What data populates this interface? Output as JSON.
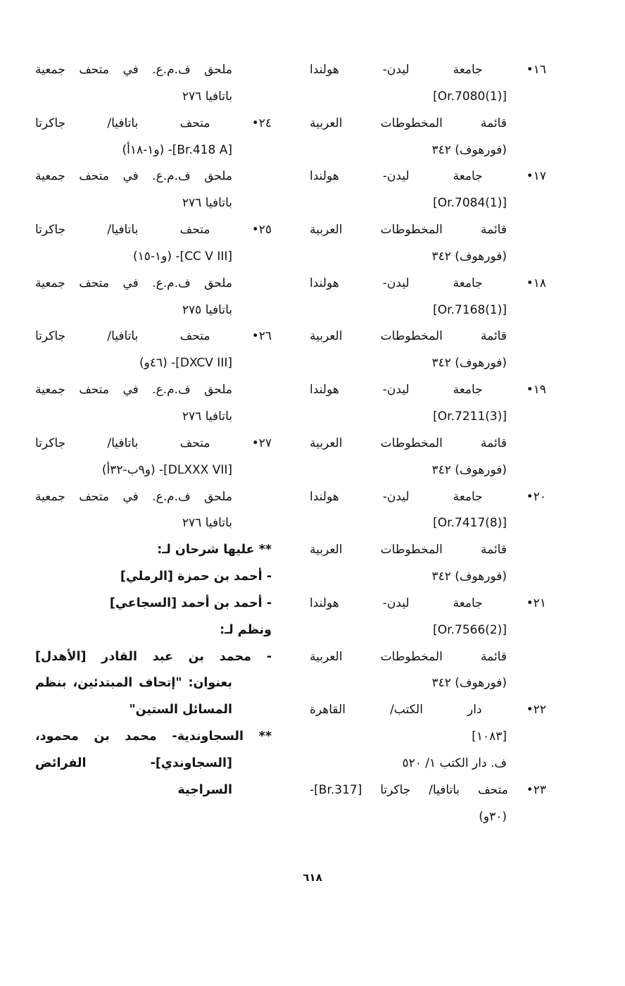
{
  "columns": {
    "right": [
      {
        "text": "١٦• جامعة ليدن- هولندا",
        "indent": false,
        "full": true,
        "bold": false
      },
      {
        "text": "[Or.7080(1)]",
        "indent": true,
        "full": false,
        "bold": false
      },
      {
        "text": "قائمة المخطوطات العربية",
        "indent": true,
        "full": true,
        "bold": false
      },
      {
        "text": "(فورهوف) ٣٤٢",
        "indent": true,
        "full": false,
        "bold": false
      },
      {
        "text": "١٧• جامعة ليدن- هولندا",
        "indent": false,
        "full": true,
        "bold": false
      },
      {
        "text": "[Or.7084(1)]",
        "indent": true,
        "full": false,
        "bold": false
      },
      {
        "text": "قائمة المخطوطات العربية",
        "indent": true,
        "full": true,
        "bold": false
      },
      {
        "text": "(فورهوف) ٣٤٢",
        "indent": true,
        "full": false,
        "bold": false
      },
      {
        "text": "١٨• جامعة ليدن- هولندا",
        "indent": false,
        "full": true,
        "bold": false
      },
      {
        "text": "[Or.7168(1)]",
        "indent": true,
        "full": false,
        "bold": false
      },
      {
        "text": "قائمة المخطوطات العربية",
        "indent": true,
        "full": true,
        "bold": false
      },
      {
        "text": "(فورهوف) ٣٤٢",
        "indent": true,
        "full": false,
        "bold": false
      },
      {
        "text": "١٩• جامعة ليدن- هولندا",
        "indent": false,
        "full": true,
        "bold": false
      },
      {
        "text": "[Or.7211(3)]",
        "indent": true,
        "full": false,
        "bold": false
      },
      {
        "text": "قائمة المخطوطات العربية",
        "indent": true,
        "full": true,
        "bold": false
      },
      {
        "text": "(فورهوف) ٣٤٢",
        "indent": true,
        "full": false,
        "bold": false
      },
      {
        "text": "٢٠• جامعة ليدن- هولندا",
        "indent": false,
        "full": true,
        "bold": false
      },
      {
        "text": "[Or.7417(8)]",
        "indent": true,
        "full": false,
        "bold": false
      },
      {
        "text": "قائمة المخطوطات العربية",
        "indent": true,
        "full": true,
        "bold": false
      },
      {
        "text": "(فورهوف) ٣٤٢",
        "indent": true,
        "full": false,
        "bold": false
      },
      {
        "text": "٢١• جامعة ليدن- هولندا",
        "indent": false,
        "full": true,
        "bold": false
      },
      {
        "text": "[Or.7566(2)]",
        "indent": true,
        "full": false,
        "bold": false
      },
      {
        "text": "قائمة المخطوطات العربية",
        "indent": true,
        "full": true,
        "bold": false
      },
      {
        "text": "(فورهوف) ٣٤٢",
        "indent": true,
        "full": false,
        "bold": false
      },
      {
        "text": "٢٢• دار الكتب/ القاهرة",
        "indent": false,
        "full": true,
        "bold": false
      },
      {
        "text": "[١٠٨٣]",
        "indent": true,
        "full": false,
        "bold": false
      },
      {
        "text": "ف. دار الكتب ١/ ٥٢٠",
        "indent": true,
        "full": false,
        "bold": false
      },
      {
        "text": "٢٣• متحف باتافيا/ جاكرتا [Br.317]-",
        "indent": false,
        "full": true,
        "bold": false
      },
      {
        "text": "(٣٠و)",
        "indent": true,
        "full": false,
        "bold": false
      }
    ],
    "left": [
      {
        "text": "ملحق ف.م.ع. في متحف جمعية",
        "indent": true,
        "full": true,
        "bold": false
      },
      {
        "text": "باتافيا ٢٧٦",
        "indent": true,
        "full": false,
        "bold": false
      },
      {
        "text": "٢٤• متحف باتافيا/ جاكرتا",
        "indent": false,
        "full": true,
        "bold": false
      },
      {
        "text": "[Br.418 A]- (و١-١٨أ)",
        "indent": true,
        "full": false,
        "bold": false
      },
      {
        "text": "ملحق ف.م.ع. في متحف جمعية",
        "indent": true,
        "full": true,
        "bold": false
      },
      {
        "text": "باتافيا ٢٧٦",
        "indent": true,
        "full": false,
        "bold": false
      },
      {
        "text": "٢٥• متحف باتافيا/ جاكرتا",
        "indent": false,
        "full": true,
        "bold": false
      },
      {
        "text": "[CC V III]- (و١-١٥)",
        "indent": true,
        "full": false,
        "bold": false
      },
      {
        "text": "ملحق ف.م.ع. في متحف جمعية",
        "indent": true,
        "full": true,
        "bold": false
      },
      {
        "text": "باتافيا ٢٧٥",
        "indent": true,
        "full": false,
        "bold": false
      },
      {
        "text": "٢٦• متحف باتافيا/ جاكرتا",
        "indent": false,
        "full": true,
        "bold": false
      },
      {
        "text": "[DXCV III]- (٤٦و)",
        "indent": true,
        "full": false,
        "bold": false
      },
      {
        "text": "ملحق ف.م.ع. في متحف جمعية",
        "indent": true,
        "full": true,
        "bold": false
      },
      {
        "text": "باتافيا ٢٧٦",
        "indent": true,
        "full": false,
        "bold": false
      },
      {
        "text": "٢٧• متحف باتافيا/ جاكرتا",
        "indent": false,
        "full": true,
        "bold": false
      },
      {
        "text": "[DLXXX VII]- (و٩ب-٣٢أ)",
        "indent": true,
        "full": false,
        "bold": false
      },
      {
        "text": "ملحق ف.م.ع. في متحف جمعية",
        "indent": true,
        "full": true,
        "bold": false
      },
      {
        "text": "باتافيا ٢٧٦",
        "indent": true,
        "full": false,
        "bold": false
      },
      {
        "text": "** عليها شرحان لـ:",
        "indent": false,
        "full": false,
        "bold": true
      },
      {
        "text": "- أحمد بن حمزة [الرملي]",
        "indent": false,
        "full": false,
        "bold": true
      },
      {
        "text": "- أحمد بن أحمد [السجاعي]",
        "indent": false,
        "full": false,
        "bold": true
      },
      {
        "text": "ونظم لـ:",
        "indent": false,
        "full": false,
        "bold": true
      },
      {
        "text": "- محمد بن عبد القادر [الأهدل]",
        "indent": false,
        "full": true,
        "bold": true
      },
      {
        "text": "بعنوان: \"إتحاف المبتدئين، بنظم",
        "indent": true,
        "full": true,
        "bold": true
      },
      {
        "text": "المسائل الستين\"",
        "indent": true,
        "full": false,
        "bold": true
      },
      {
        "text": "** السجاوندية- محمد بن محمود،",
        "indent": false,
        "full": true,
        "bold": true
      },
      {
        "text": "[السجاوندي]- الفرائض",
        "indent": true,
        "full": true,
        "bold": true
      },
      {
        "text": "السراجية",
        "indent": true,
        "full": false,
        "bold": true
      }
    ]
  },
  "page_number": "٦١٨"
}
